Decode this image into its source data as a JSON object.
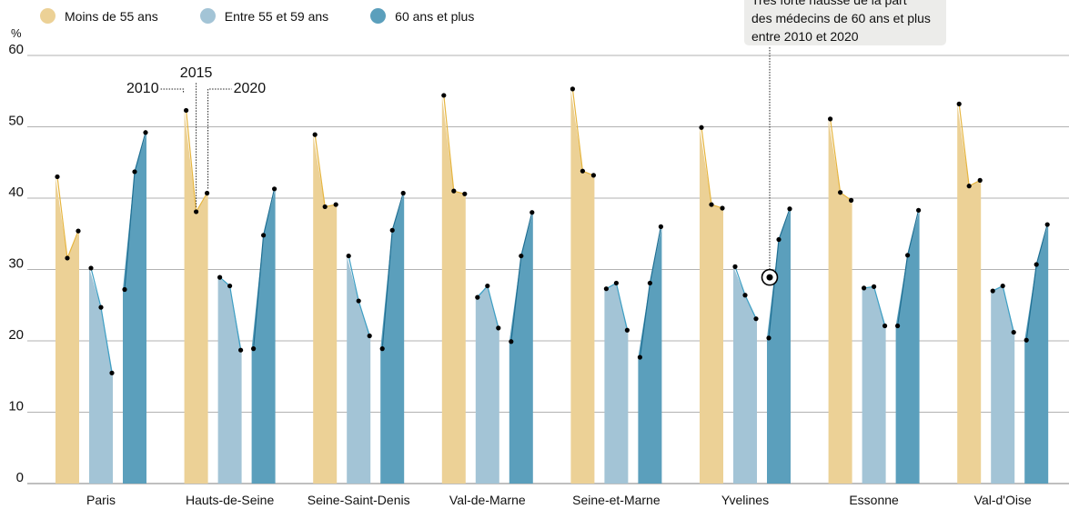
{
  "legend": [
    {
      "label": "Moins de 55 ans",
      "color": "#ecd196"
    },
    {
      "label": "Entre 55 et 59 ans",
      "color": "#a3c4d6"
    },
    {
      "label": "60 ans et plus",
      "color": "#5b9fbc"
    }
  ],
  "annotation": {
    "lines": [
      "Très forte hausse de la part",
      "des médecins de 60 ans et plus",
      "entre 2010 et 2020"
    ]
  },
  "year_labels": [
    "2010",
    "2015",
    "2020"
  ],
  "colors": {
    "group1_fill": "#ecd196",
    "group1_line": "#e6b53f",
    "group2_fill": "#a3c4d6",
    "group2_line": "#3d9fc4",
    "group3_fill": "#5b9fbc",
    "group3_line": "#1f6f93",
    "grid": "#999999",
    "point": "#000000"
  },
  "chart_data": {
    "type": "area",
    "ylabel": "%",
    "ylim": [
      0,
      60
    ],
    "yticks": [
      0,
      10,
      20,
      30,
      40,
      50,
      60
    ],
    "years": [
      2010,
      2015,
      2020
    ],
    "categories": [
      "Paris",
      "Hauts-de-Seine",
      "Seine-Saint-Denis",
      "Val-de-Marne",
      "Seine-et-Marne",
      "Yvelines",
      "Essonne",
      "Val-d'Oise"
    ],
    "series": [
      {
        "name": "Moins de 55 ans",
        "values": [
          [
            43.0,
            31.6,
            35.4
          ],
          [
            52.3,
            38.1,
            40.7
          ],
          [
            48.9,
            38.8,
            39.1
          ],
          [
            54.4,
            41.0,
            40.6
          ],
          [
            55.3,
            43.8,
            43.2
          ],
          [
            49.9,
            39.1,
            38.6
          ],
          [
            51.1,
            40.8,
            39.7
          ],
          [
            53.2,
            41.7,
            42.5
          ]
        ]
      },
      {
        "name": "Entre 55 et 59 ans",
        "values": [
          [
            30.2,
            24.7,
            15.5
          ],
          [
            28.9,
            27.7,
            18.7
          ],
          [
            31.9,
            25.6,
            20.7
          ],
          [
            26.1,
            27.7,
            21.8
          ],
          [
            27.3,
            28.1,
            21.5
          ],
          [
            30.4,
            26.4,
            23.1
          ],
          [
            27.4,
            27.6,
            22.1
          ],
          [
            27.0,
            27.7,
            21.2
          ]
        ]
      },
      {
        "name": "60 ans et plus",
        "values": [
          [
            27.2,
            43.7,
            49.2
          ],
          [
            18.9,
            34.8,
            41.3
          ],
          [
            18.9,
            35.5,
            40.7
          ],
          [
            19.9,
            31.9,
            38.0
          ],
          [
            17.7,
            28.1,
            36.0
          ],
          [
            20.4,
            34.2,
            38.5
          ],
          [
            22.1,
            32.0,
            38.3
          ],
          [
            20.1,
            30.7,
            36.3
          ]
        ]
      }
    ],
    "highlight": {
      "category": "Yvelines",
      "series": "60 ans et plus"
    },
    "grid": true,
    "legend_position": "top-left"
  }
}
